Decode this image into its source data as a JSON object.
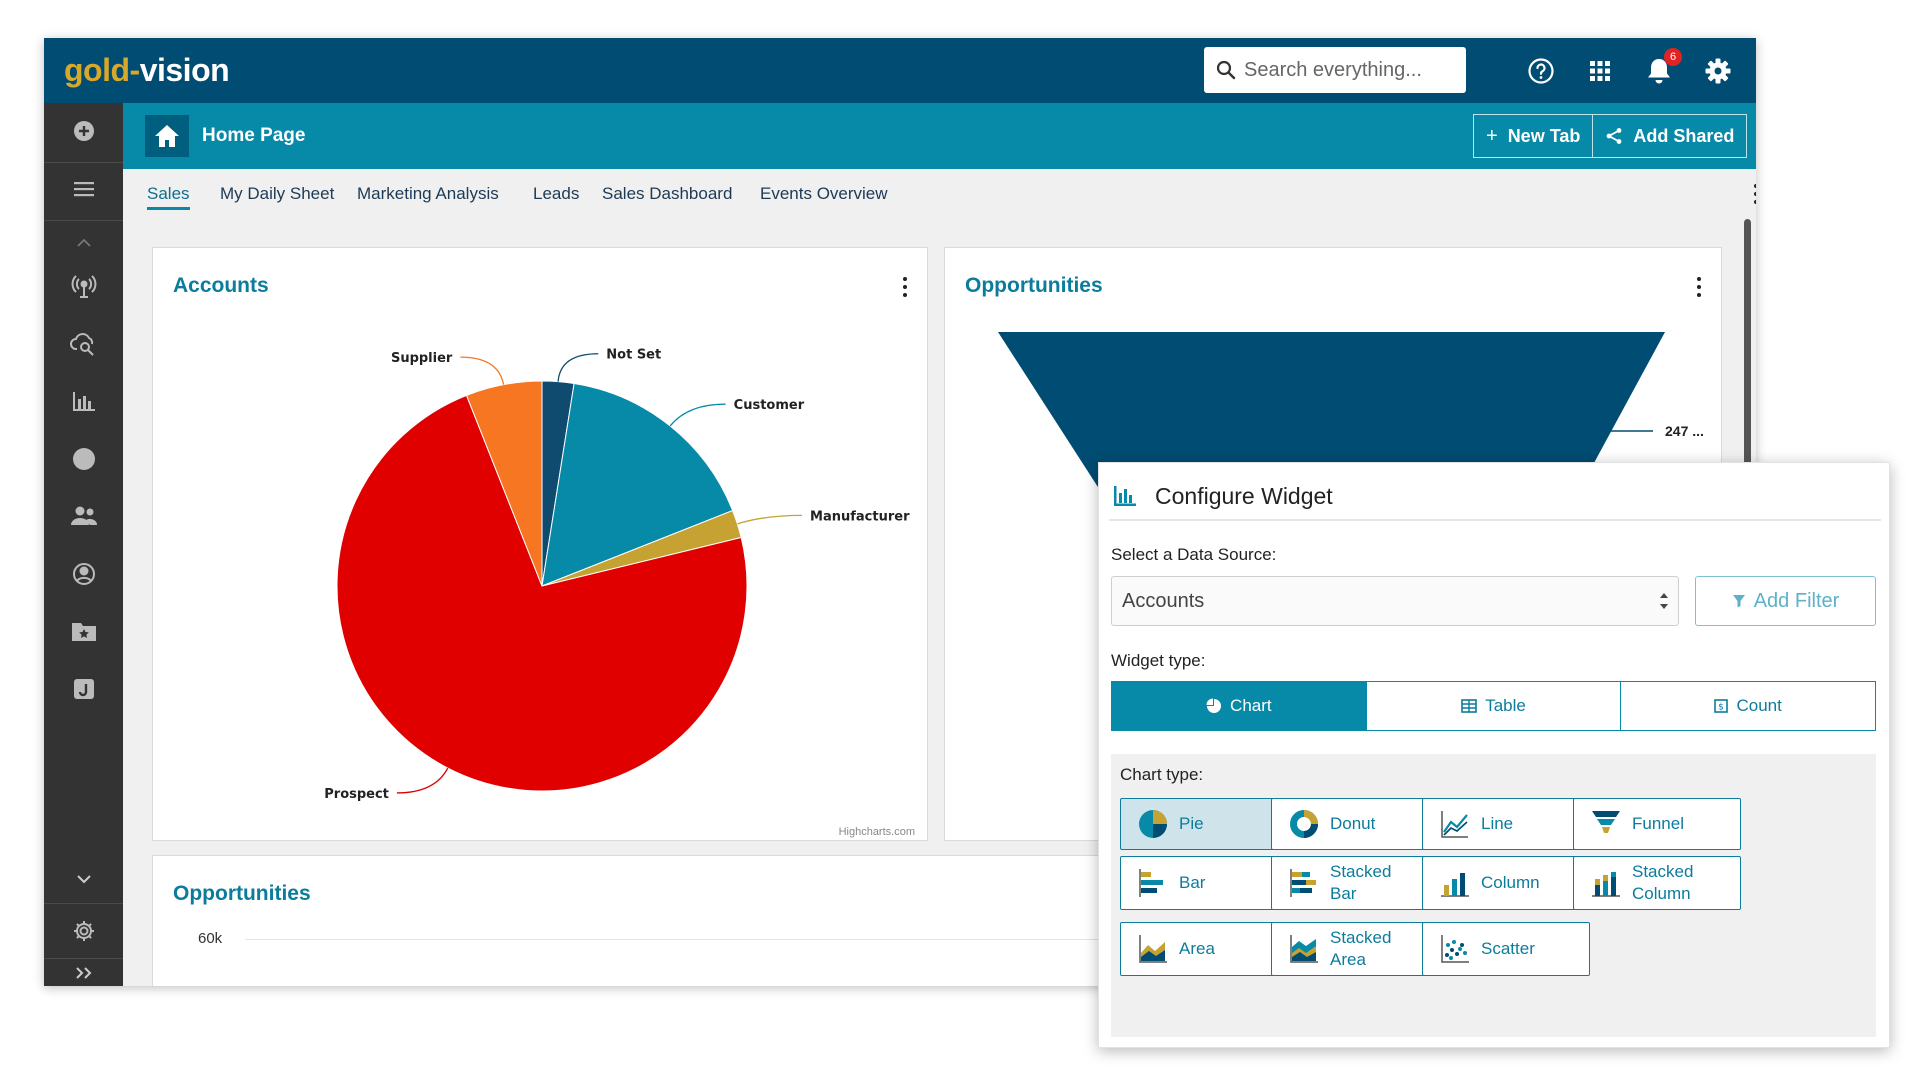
{
  "app": {
    "logo_part1": "gold",
    "logo_dash": "-",
    "logo_part2": "vision",
    "search_placeholder": "Search everything...",
    "notification_count": "6"
  },
  "sidebar": {
    "icons": [
      "add-icon",
      "menu-icon",
      "chevron-up-icon",
      "broadcast-icon",
      "cloud-search-icon",
      "bar-chart-icon",
      "circle-icon",
      "contacts-icon",
      "support-icon",
      "folder-star-icon",
      "journal-icon",
      "chevron-down-icon",
      "gear-icon",
      "expand-icon"
    ]
  },
  "titlebar": {
    "title": "Home Page",
    "new_tab": "New Tab",
    "add_shared": "Add Shared"
  },
  "tabs": [
    "Sales",
    "My Daily Sheet",
    "Marketing Analysis",
    "Leads",
    "Sales Dashboard",
    "Events Overview"
  ],
  "accounts_panel": {
    "title": "Accounts",
    "credit": "Highcharts.com"
  },
  "opportunities_panel": {
    "title": "Opportunities",
    "funnel_label": "247 ..."
  },
  "opportunities_bottom": {
    "title": "Opportunities",
    "y_tick": "60k"
  },
  "chart_data": {
    "type": "pie",
    "title": "Accounts",
    "categories": [
      "Not Set",
      "Customer",
      "Manufacturer",
      "Prospect",
      "Supplier"
    ],
    "values": [
      2.5,
      16.5,
      2.2,
      72.8,
      6.0
    ],
    "colors": [
      "#0f4b6e",
      "#0789a8",
      "#c5a232",
      "#e00000",
      "#f77622"
    ]
  },
  "configure": {
    "title": "Configure Widget",
    "data_source_label": "Select a Data Source:",
    "data_source_value": "Accounts",
    "add_filter": "Add Filter",
    "widget_type_label": "Widget type:",
    "widget_types": [
      "Chart",
      "Table",
      "Count"
    ],
    "selected_widget_type": "Chart",
    "chart_type_label": "Chart type:",
    "chart_types": [
      "Pie",
      "Donut",
      "Line",
      "Funnel",
      "Bar",
      "Stacked Bar",
      "Column",
      "Stacked Column",
      "Area",
      "Stacked Area",
      "Scatter"
    ],
    "selected_chart_type": "Pie",
    "accent_color": "#0789a8"
  }
}
